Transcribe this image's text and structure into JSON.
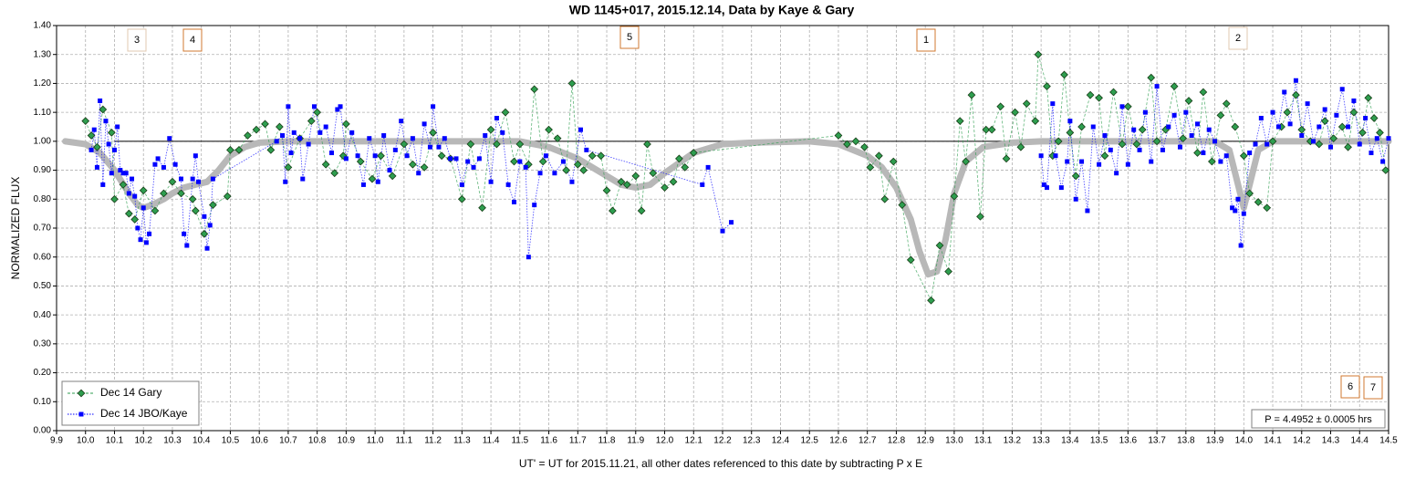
{
  "chart_data": {
    "type": "scatter",
    "title": "WD 1145+017, 2015.12.14, Data by Kaye & Gary",
    "x_label": "UT' = UT for 2015.11.21, all other dates referenced to this date by subtracting P x E",
    "y_label": "NORMALIZED FLUX",
    "xlim": [
      9.9,
      14.5
    ],
    "ylim": [
      0,
      1.4
    ],
    "grid": true,
    "legend": "bottom-left",
    "xticks": [
      {
        "value": 9.9,
        "label": "9.9"
      },
      {
        "value": 10,
        "label": "10.0"
      },
      {
        "value": 10.1,
        "label": "10.1"
      },
      {
        "value": 10.2,
        "label": "10.2"
      },
      {
        "value": 10.3,
        "label": "10.3"
      },
      {
        "value": 10.4,
        "label": "10.4"
      },
      {
        "value": 10.5,
        "label": "10.5"
      },
      {
        "value": 10.6,
        "label": "10.6"
      },
      {
        "value": 10.7,
        "label": "10.7"
      },
      {
        "value": 10.8,
        "label": "10.8"
      },
      {
        "value": 10.9,
        "label": "10.9"
      },
      {
        "value": 11,
        "label": "11.0"
      },
      {
        "value": 11.1,
        "label": "11.1"
      },
      {
        "value": 11.2,
        "label": "11.2"
      },
      {
        "value": 11.3,
        "label": "11.3"
      },
      {
        "value": 11.4,
        "label": "11.4"
      },
      {
        "value": 11.5,
        "label": "11.5"
      },
      {
        "value": 11.6,
        "label": "11.6"
      },
      {
        "value": 11.7,
        "label": "11.7"
      },
      {
        "value": 11.8,
        "label": "11.8"
      },
      {
        "value": 11.9,
        "label": "11.9"
      },
      {
        "value": 12,
        "label": "12.0"
      },
      {
        "value": 12.1,
        "label": "12.1"
      },
      {
        "value": 12.2,
        "label": "12.2"
      },
      {
        "value": 12.3,
        "label": "12.3"
      },
      {
        "value": 12.4,
        "label": "12.4"
      },
      {
        "value": 12.5,
        "label": "12.5"
      },
      {
        "value": 12.6,
        "label": "12.6"
      },
      {
        "value": 12.7,
        "label": "12.7"
      },
      {
        "value": 12.8,
        "label": "12.8"
      },
      {
        "value": 12.9,
        "label": "12.9"
      },
      {
        "value": 13,
        "label": "13.0"
      },
      {
        "value": 13.1,
        "label": "13.1"
      },
      {
        "value": 13.2,
        "label": "13.2"
      },
      {
        "value": 13.3,
        "label": "13.3"
      },
      {
        "value": 13.4,
        "label": "13.4"
      },
      {
        "value": 13.5,
        "label": "13.5"
      },
      {
        "value": 13.6,
        "label": "13.6"
      },
      {
        "value": 13.7,
        "label": "13.7"
      },
      {
        "value": 13.8,
        "label": "13.8"
      },
      {
        "value": 13.9,
        "label": "13.9"
      },
      {
        "value": 14,
        "label": "14.0"
      },
      {
        "value": 14.1,
        "label": "14.1"
      },
      {
        "value": 14.2,
        "label": "14.2"
      },
      {
        "value": 14.3,
        "label": "14.3"
      },
      {
        "value": 14.4,
        "label": "14.4"
      },
      {
        "value": 14.5,
        "label": "14.5"
      }
    ],
    "yticks": [
      {
        "value": 0,
        "label": "0.00"
      },
      {
        "value": 0.1,
        "label": "0.10"
      },
      {
        "value": 0.2,
        "label": "0.20"
      },
      {
        "value": 0.3,
        "label": "0.30"
      },
      {
        "value": 0.4,
        "label": "0.40"
      },
      {
        "value": 0.5,
        "label": "0.50"
      },
      {
        "value": 0.6,
        "label": "0.60"
      },
      {
        "value": 0.7,
        "label": "0.70"
      },
      {
        "value": 0.8,
        "label": "0.80"
      },
      {
        "value": 0.9,
        "label": "0.90"
      },
      {
        "value": 1,
        "label": "1.00"
      },
      {
        "value": 1.1,
        "label": "1.10"
      },
      {
        "value": 1.2,
        "label": "1.20"
      },
      {
        "value": 1.3,
        "label": "1.30"
      },
      {
        "value": 1.4,
        "label": "1.40"
      }
    ],
    "reference_line": {
      "y": 1,
      "x": [
        10.1,
        14.5
      ],
      "color": "#000000"
    },
    "model": {
      "color": "#b8b8b8",
      "x": [
        9.93,
        10.0,
        10.05,
        10.1,
        10.15,
        10.18,
        10.2,
        10.23,
        10.27,
        10.3,
        10.34,
        10.38,
        10.42,
        10.46,
        10.5,
        10.55,
        10.6,
        10.7,
        11.5,
        11.6,
        11.7,
        11.8,
        11.85,
        11.9,
        11.95,
        12.0,
        12.1,
        12.2,
        12.3,
        12.5,
        12.6,
        12.7,
        12.75,
        12.8,
        12.85,
        12.88,
        12.91,
        12.94,
        12.97,
        13.0,
        13.04,
        13.1,
        13.2,
        13.3,
        13.9,
        13.95,
        13.98,
        14.0,
        14.02,
        14.05,
        14.1,
        14.5
      ],
      "values": [
        1.0,
        0.99,
        0.96,
        0.9,
        0.82,
        0.78,
        0.77,
        0.78,
        0.8,
        0.82,
        0.84,
        0.85,
        0.86,
        0.9,
        0.95,
        0.98,
        0.995,
        1.0,
        1.0,
        0.98,
        0.94,
        0.88,
        0.85,
        0.84,
        0.85,
        0.89,
        0.96,
        0.99,
        0.995,
        1.0,
        0.99,
        0.95,
        0.91,
        0.84,
        0.73,
        0.62,
        0.54,
        0.55,
        0.66,
        0.82,
        0.93,
        0.98,
        0.995,
        1.0,
        1.0,
        0.97,
        0.85,
        0.77,
        0.85,
        0.97,
        1.0,
        1.0
      ]
    },
    "series": [
      {
        "name": "Dec 14 Gary",
        "color": "#2e9e4f",
        "marker": "diamond",
        "line": "dashed",
        "x": [
          10.0,
          10.02,
          10.04,
          10.06,
          10.09,
          10.1,
          10.13,
          10.15,
          10.17,
          10.2,
          10.24,
          10.27,
          10.3,
          10.33,
          10.37,
          10.38,
          10.41,
          10.44,
          10.49,
          10.5,
          10.53,
          10.56,
          10.59,
          10.62,
          10.64,
          10.67,
          10.7,
          10.74,
          10.78,
          10.8,
          10.83,
          10.86,
          10.89,
          10.9,
          10.95,
          10.99,
          11.02,
          11.06,
          11.1,
          11.13,
          11.17,
          11.2,
          11.23,
          11.26,
          11.3,
          11.33,
          11.37,
          11.4,
          11.42,
          11.45,
          11.48,
          11.5,
          11.53,
          11.55,
          11.58,
          11.6,
          11.63,
          11.66,
          11.68,
          11.7,
          11.72,
          11.75,
          11.78,
          11.8,
          11.82,
          11.85,
          11.87,
          11.9,
          11.92,
          11.94,
          11.96,
          12.0,
          12.03,
          12.05,
          12.07,
          12.1,
          12.6,
          12.63,
          12.66,
          12.69,
          12.71,
          12.74,
          12.76,
          12.79,
          12.82,
          12.85,
          12.92,
          12.95,
          12.98,
          13.0,
          13.02,
          13.04,
          13.06,
          13.09,
          13.11,
          13.13,
          13.16,
          13.18,
          13.21,
          13.23,
          13.25,
          13.28,
          13.29,
          13.32,
          13.34,
          13.36,
          13.38,
          13.4,
          13.42,
          13.44,
          13.47,
          13.5,
          13.52,
          13.55,
          13.58,
          13.6,
          13.63,
          13.65,
          13.68,
          13.7,
          13.73,
          13.76,
          13.79,
          13.81,
          13.84,
          13.86,
          13.89,
          13.92,
          13.94,
          13.97,
          14.0,
          14.02,
          14.05,
          14.08,
          14.1,
          14.13,
          14.15,
          14.18,
          14.2,
          14.23,
          14.26,
          14.28,
          14.31,
          14.34,
          14.36,
          14.38,
          14.41,
          14.43,
          14.45,
          14.47,
          14.49
        ],
        "values": [
          1.07,
          1.02,
          0.98,
          1.11,
          1.03,
          0.8,
          0.85,
          0.75,
          0.73,
          0.83,
          0.76,
          0.82,
          0.86,
          0.82,
          0.8,
          0.76,
          0.68,
          0.78,
          0.81,
          0.97,
          0.97,
          1.02,
          1.04,
          1.06,
          0.97,
          1.05,
          0.91,
          1.01,
          1.07,
          1.1,
          0.92,
          0.89,
          0.95,
          1.06,
          0.93,
          0.87,
          0.95,
          0.88,
          0.99,
          0.92,
          0.91,
          1.03,
          0.95,
          0.94,
          0.8,
          0.99,
          0.77,
          1.04,
          0.99,
          1.1,
          0.93,
          0.99,
          0.92,
          1.18,
          0.93,
          1.04,
          1.01,
          0.9,
          1.2,
          0.92,
          0.9,
          0.95,
          0.95,
          0.83,
          0.76,
          0.86,
          0.85,
          0.88,
          0.76,
          0.99,
          0.89,
          0.84,
          0.86,
          0.94,
          0.91,
          0.96,
          1.02,
          0.99,
          1.0,
          0.98,
          0.91,
          0.95,
          0.8,
          0.93,
          0.78,
          0.59,
          0.45,
          0.64,
          0.55,
          0.81,
          1.07,
          0.93,
          1.16,
          0.74,
          1.04,
          1.04,
          1.12,
          0.94,
          1.1,
          0.98,
          1.13,
          1.07,
          1.3,
          1.19,
          0.95,
          1.0,
          1.23,
          1.03,
          0.88,
          1.05,
          1.16,
          1.15,
          0.95,
          1.17,
          0.99,
          1.12,
          0.99,
          1.04,
          1.22,
          1.0,
          1.04,
          1.19,
          1.01,
          1.14,
          0.96,
          1.17,
          0.93,
          1.09,
          1.13,
          1.05,
          0.95,
          0.82,
          0.79,
          0.77,
          1.0,
          1.05,
          1.1,
          1.16,
          1.04,
          1.0,
          0.99,
          1.07,
          1.01,
          1.05,
          0.98,
          1.1,
          1.03,
          1.15,
          1.08,
          1.03,
          0.9
        ]
      },
      {
        "name": "Dec 14 JBO/Kaye",
        "color": "#0000ff",
        "marker": "square",
        "line": "dotted",
        "x": [
          10.02,
          10.03,
          10.04,
          10.05,
          10.06,
          10.07,
          10.08,
          10.09,
          10.1,
          10.11,
          10.12,
          10.13,
          10.14,
          10.15,
          10.16,
          10.17,
          10.18,
          10.19,
          10.2,
          10.21,
          10.22,
          10.24,
          10.25,
          10.27,
          10.29,
          10.31,
          10.33,
          10.34,
          10.35,
          10.37,
          10.38,
          10.39,
          10.41,
          10.42,
          10.43,
          10.44,
          10.66,
          10.68,
          10.69,
          10.7,
          10.71,
          10.72,
          10.74,
          10.75,
          10.77,
          10.79,
          10.81,
          10.83,
          10.85,
          10.87,
          10.88,
          10.9,
          10.92,
          10.94,
          10.96,
          10.98,
          11.0,
          11.01,
          11.03,
          11.05,
          11.07,
          11.09,
          11.11,
          11.13,
          11.15,
          11.17,
          11.19,
          11.2,
          11.22,
          11.24,
          11.26,
          11.28,
          11.3,
          11.32,
          11.34,
          11.36,
          11.38,
          11.4,
          11.42,
          11.44,
          11.46,
          11.48,
          11.5,
          11.52,
          11.53,
          11.55,
          11.57,
          11.59,
          11.62,
          11.65,
          11.68,
          11.71,
          11.73,
          12.13,
          12.15,
          12.2,
          12.23,
          12.5,
          13.3,
          13.31,
          13.32,
          13.34,
          13.35,
          13.37,
          13.39,
          13.4,
          13.42,
          13.44,
          13.46,
          13.48,
          13.5,
          13.52,
          13.54,
          13.56,
          13.58,
          13.6,
          13.62,
          13.64,
          13.66,
          13.68,
          13.7,
          13.72,
          13.74,
          13.76,
          13.78,
          13.8,
          13.82,
          13.84,
          13.86,
          13.88,
          13.9,
          13.92,
          13.94,
          13.96,
          13.97,
          13.98,
          13.99,
          14.0,
          14.02,
          14.04,
          14.06,
          14.08,
          14.1,
          14.12,
          14.14,
          14.16,
          14.18,
          14.2,
          14.22,
          14.24,
          14.26,
          14.28,
          14.3,
          14.32,
          14.34,
          14.36,
          14.38,
          14.4,
          14.42,
          14.44,
          14.46,
          14.48,
          14.5
        ],
        "values": [
          0.97,
          1.04,
          0.91,
          1.14,
          0.85,
          1.07,
          0.99,
          0.89,
          0.97,
          1.05,
          0.9,
          0.89,
          0.89,
          0.82,
          0.87,
          0.81,
          0.7,
          0.66,
          0.77,
          0.65,
          0.68,
          0.92,
          0.94,
          0.91,
          1.01,
          0.92,
          0.87,
          0.68,
          0.64,
          0.87,
          0.95,
          0.86,
          0.74,
          0.63,
          0.71,
          0.87,
          1.0,
          1.02,
          0.86,
          1.12,
          0.96,
          1.03,
          1.01,
          0.87,
          0.99,
          1.12,
          1.03,
          1.05,
          0.96,
          1.11,
          1.12,
          0.94,
          1.03,
          0.95,
          0.85,
          1.01,
          0.95,
          0.86,
          1.02,
          0.9,
          0.97,
          1.07,
          0.95,
          1.01,
          0.89,
          1.06,
          0.98,
          1.12,
          0.98,
          1.01,
          0.94,
          0.94,
          0.85,
          0.93,
          0.91,
          0.94,
          1.02,
          0.86,
          1.08,
          1.03,
          0.85,
          0.79,
          0.93,
          0.91,
          0.6,
          0.78,
          0.89,
          0.95,
          0.89,
          0.93,
          0.86,
          1.04,
          0.97,
          0.85,
          0.91,
          0.69,
          0.72,
          null,
          0.95,
          0.85,
          0.84,
          1.13,
          0.95,
          0.84,
          0.93,
          1.07,
          0.8,
          0.93,
          0.76,
          1.05,
          0.92,
          1.02,
          0.97,
          0.89,
          1.12,
          0.92,
          1.04,
          0.97,
          1.1,
          0.93,
          1.19,
          0.97,
          1.05,
          1.09,
          0.98,
          1.1,
          1.02,
          1.06,
          0.96,
          1.04,
          1.0,
          0.93,
          0.95,
          0.77,
          0.76,
          0.8,
          0.64,
          0.75,
          0.96,
          0.99,
          1.08,
          0.99,
          1.1,
          1.05,
          1.17,
          1.06,
          1.21,
          1.02,
          1.13,
          1.0,
          1.05,
          1.11,
          0.98,
          1.09,
          1.18,
          1.05,
          1.14,
          0.99,
          1.08,
          0.96,
          1.01,
          0.93,
          1.01
        ]
      }
    ],
    "annotations": [
      "3",
      "4",
      "5",
      "1",
      "2",
      "6",
      "7"
    ],
    "period_note": "P = 4.4952 ± 0.0005 hrs"
  }
}
